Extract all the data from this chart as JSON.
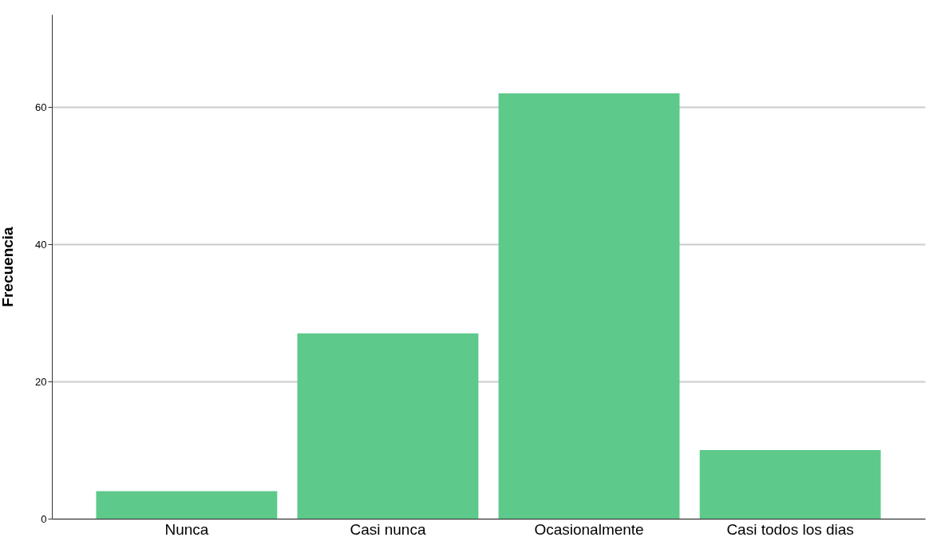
{
  "chart_data": {
    "type": "bar",
    "ylabel": "Frecuencia",
    "categories": [
      "Nunca",
      "Casi nunca",
      "Ocasionalmente",
      "Casi todos los dias"
    ],
    "values": [
      4,
      27,
      62,
      10
    ],
    "color": "#5dc98b",
    "ylim": [
      0,
      73.5
    ],
    "yticks": [
      0,
      20,
      40,
      60
    ],
    "grid": "y"
  }
}
